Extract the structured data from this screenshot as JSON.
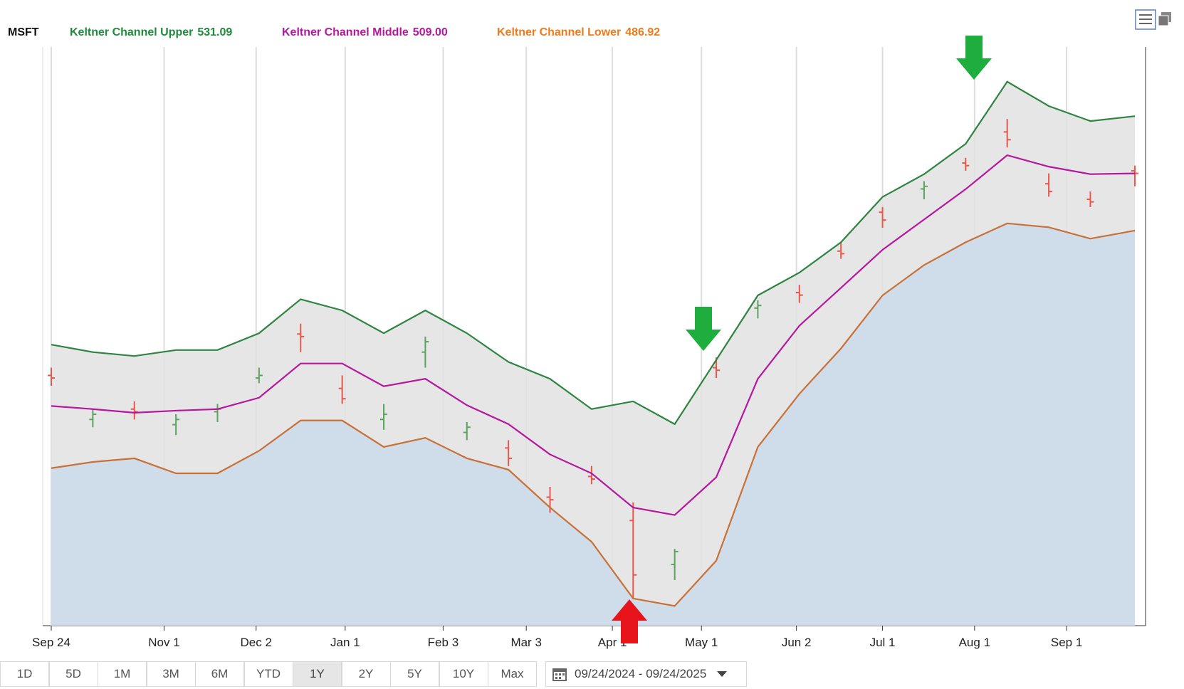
{
  "chart_data": {
    "type": "keltner",
    "x": [
      "2024-09-24",
      "2024-10-08",
      "2024-10-22",
      "2024-11-05",
      "2024-11-19",
      "2024-12-03",
      "2024-12-17",
      "2024-12-31",
      "2025-01-14",
      "2025-01-28",
      "2025-02-11",
      "2025-02-25",
      "2025-03-11",
      "2025-03-25",
      "2025-04-08",
      "2025-04-22",
      "2025-05-06",
      "2025-05-20",
      "2025-06-03",
      "2025-06-17",
      "2025-07-01",
      "2025-07-15",
      "2025-07-29",
      "2025-08-12",
      "2025-08-26",
      "2025-09-09",
      "2025-09-24"
    ],
    "xlim": [
      "2024-09-24",
      "2025-09-24"
    ],
    "xticks": [
      {
        "value": "2024-09-24",
        "label": "Sep 24"
      },
      {
        "value": "2024-11-01",
        "label": "Nov 1"
      },
      {
        "value": "2024-12-02",
        "label": "Dec 2"
      },
      {
        "value": "2025-01-01",
        "label": "Jan 1"
      },
      {
        "value": "2025-02-03",
        "label": "Feb 3"
      },
      {
        "value": "2025-03-03",
        "label": "Mar 3"
      },
      {
        "value": "2025-04-01",
        "label": "Apr 1"
      },
      {
        "value": "2025-05-01",
        "label": "May 1"
      },
      {
        "value": "2025-06-02",
        "label": "Jun 2"
      },
      {
        "value": "2025-07-01",
        "label": "Jul 1"
      },
      {
        "value": "2025-08-01",
        "label": "Aug 1"
      },
      {
        "value": "2025-09-01",
        "label": "Sep 1"
      }
    ],
    "ylim": [
      334.4,
      557.8
    ],
    "grid": true,
    "series": [
      {
        "name": "Keltner Channel Upper",
        "legend_value": "531.09",
        "color": "#2e8540",
        "legend_color": "#1f8b3a",
        "values": [
          442.9,
          440.0,
          438.5,
          440.8,
          440.8,
          447.3,
          460.4,
          456.1,
          447.3,
          456.1,
          447.3,
          436.2,
          429.7,
          418.0,
          421.0,
          412.2,
          437.0,
          461.9,
          470.7,
          482.4,
          499.9,
          508.7,
          520.4,
          544.4,
          535.0,
          529.2,
          531.09
        ]
      },
      {
        "name": "Keltner Channel Middle",
        "legend_value": "509.00",
        "color": "#b5179e",
        "legend_color": "#b5179e",
        "values": [
          419.2,
          418.0,
          416.6,
          417.4,
          418.0,
          422.4,
          435.6,
          435.6,
          426.8,
          429.7,
          419.5,
          412.2,
          400.5,
          393.2,
          380.0,
          377.1,
          391.7,
          429.7,
          450.2,
          464.8,
          479.5,
          491.2,
          502.9,
          516.0,
          511.6,
          508.7,
          509
        ]
      },
      {
        "name": "Keltner Channel Lower",
        "legend_value": "486.92",
        "color": "#c87137",
        "legend_color": "#f07a1a",
        "values": [
          395.2,
          397.6,
          399.0,
          393.2,
          393.2,
          401.9,
          413.6,
          413.6,
          403.4,
          406.9,
          399.0,
          394.6,
          380.0,
          366.8,
          344.9,
          342.0,
          359.5,
          403.4,
          423.9,
          441.4,
          461.9,
          473.6,
          482.4,
          489.7,
          488.2,
          483.8,
          486.92
        ]
      }
    ],
    "band_color": "#e2e2e2",
    "floor_color": "#cfdcea",
    "ohlc": {
      "name": "MSFT",
      "up_color": "#5aa35f",
      "down_color": "#e8574a",
      "open": [
        431,
        414,
        418,
        412,
        417,
        430,
        447,
        426,
        414,
        440,
        409,
        403,
        384,
        392,
        375,
        358,
        434,
        457,
        463,
        479,
        494,
        503,
        513,
        525,
        505,
        499,
        510
      ],
      "high": [
        434,
        418,
        421,
        416,
        420,
        434,
        451,
        431,
        420,
        446,
        413,
        406,
        388,
        396,
        382,
        364,
        438,
        460,
        466,
        482,
        496,
        506,
        515,
        530,
        509,
        502,
        512
      ],
      "low": [
        427,
        411,
        414,
        408,
        413,
        428,
        440,
        420,
        410,
        434,
        406,
        396,
        378,
        389,
        345,
        352,
        430,
        453,
        459,
        476,
        488,
        499,
        510,
        519,
        500,
        496,
        504
      ],
      "close": [
        430,
        416,
        417,
        414,
        418,
        431,
        446,
        422,
        416,
        444,
        411,
        399,
        383,
        391,
        354,
        363,
        433,
        458,
        462,
        478,
        491,
        504,
        512,
        522,
        502,
        498,
        509
      ]
    }
  },
  "range_buttons": [
    "1D",
    "5D",
    "1M",
    "3M",
    "6M",
    "YTD",
    "1Y",
    "2Y",
    "5Y",
    "10Y",
    "Max"
  ],
  "selected_range": "1Y",
  "date_range": "09/24/2024 - 09/24/2025"
}
